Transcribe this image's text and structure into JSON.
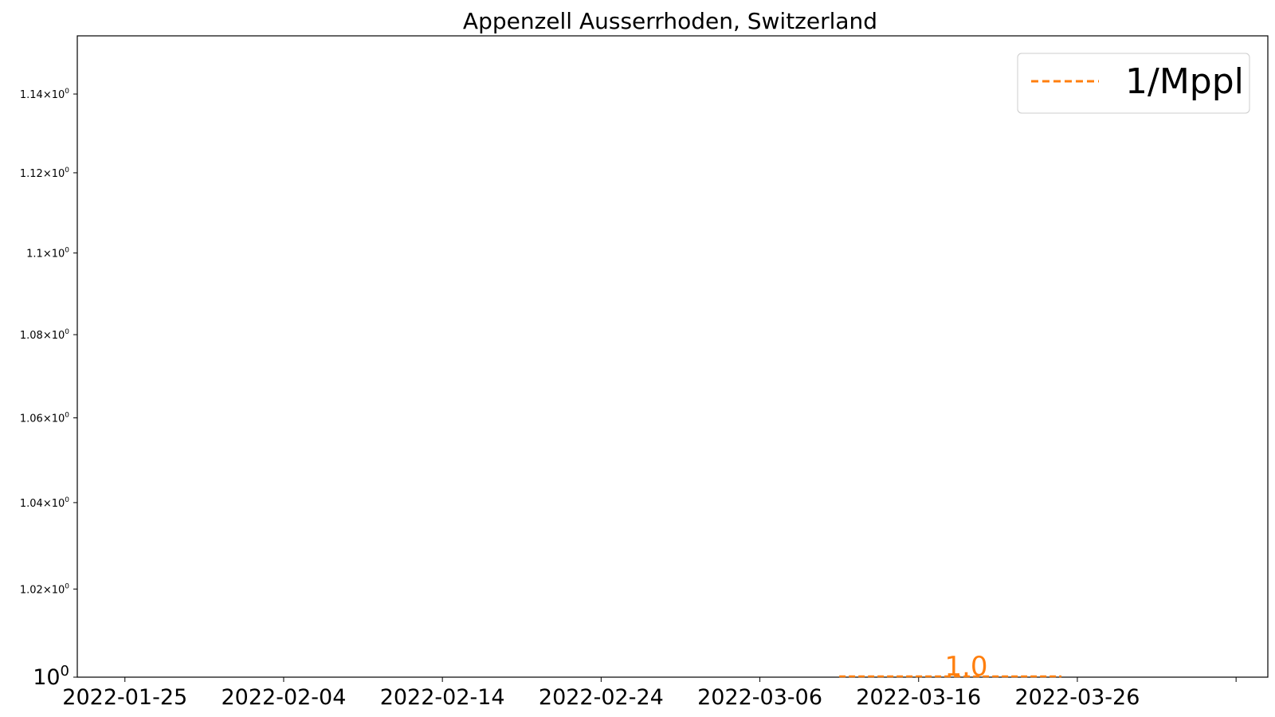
{
  "chart_data": {
    "type": "line",
    "title": "Appenzell Ausserrhoden, Switzerland",
    "xlabel": "",
    "ylabel": "",
    "y_scale": "log",
    "x_tick_labels": [
      "2022-01-25",
      "2022-02-04",
      "2022-02-14",
      "2022-02-24",
      "2022-03-06",
      "2022-03-16",
      "2022-03-26"
    ],
    "x_range": [
      "2022-01-22",
      "2022-04-07"
    ],
    "ylim": [
      1.0,
      1.155
    ],
    "y_ticks": [
      {
        "mant": "1.02",
        "exp": "0",
        "value": 1.02
      },
      {
        "mant": "1.04",
        "exp": "0",
        "value": 1.04
      },
      {
        "mant": "1.06",
        "exp": "0",
        "value": 1.06
      },
      {
        "mant": "1.08",
        "exp": "0",
        "value": 1.08
      },
      {
        "mant": "1.1",
        "exp": "0",
        "value": 1.1
      },
      {
        "mant": "1.12",
        "exp": "0",
        "value": 1.12
      },
      {
        "mant": "1.14",
        "exp": "0",
        "value": 1.14
      }
    ],
    "y_base_tick": {
      "base": "10",
      "exp": "0",
      "value": 1.0
    },
    "series": [
      {
        "name": "1/Mppl",
        "color": "#ff7f0e",
        "linestyle": "dashed",
        "x": [
          "2022-03-11",
          "2022-03-25"
        ],
        "y": [
          1.0,
          1.0
        ],
        "label": {
          "text": "1.0",
          "x": "2022-03-19",
          "y": 1.0
        }
      }
    ],
    "legend": {
      "placement": "top-right"
    },
    "grid": false
  }
}
